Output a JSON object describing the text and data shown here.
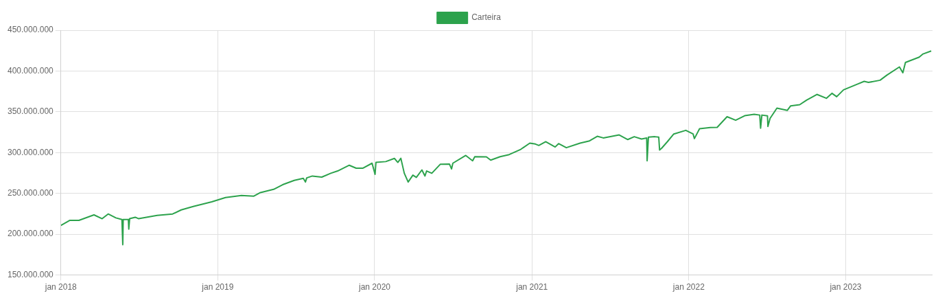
{
  "chart_data": {
    "type": "line",
    "legend": "top",
    "grid": true,
    "xlim": [
      "2018-01-01",
      "2023-07-22"
    ],
    "xticks": [
      {
        "value": "2018-01-01",
        "label": "jan 2018"
      },
      {
        "value": "2019-01-01",
        "label": "jan 2019"
      },
      {
        "value": "2020-01-01",
        "label": "jan 2020"
      },
      {
        "value": "2021-01-01",
        "label": "jan 2021"
      },
      {
        "value": "2022-01-01",
        "label": "jan 2022"
      },
      {
        "value": "2023-01-01",
        "label": "jan 2023"
      }
    ],
    "ylim": [
      150000000,
      450000000
    ],
    "yticks": [
      {
        "value": 150000000,
        "label": "150.000.000"
      },
      {
        "value": 200000000,
        "label": "200.000.000"
      },
      {
        "value": 250000000,
        "label": "250.000.000"
      },
      {
        "value": 300000000,
        "label": "300.000.000"
      },
      {
        "value": 350000000,
        "label": "350.000.000"
      },
      {
        "value": 400000000,
        "label": "400.000.000"
      },
      {
        "value": 450000000,
        "label": "450.000.000"
      }
    ],
    "series": [
      {
        "name": "Carteira",
        "color": "#2ca24c",
        "x": [
          "2018-01-01",
          "2018-01-22",
          "2018-02-12",
          "2018-03-19",
          "2018-04-07",
          "2018-04-21",
          "2018-05-09",
          "2018-05-23",
          "2018-05-25",
          "2018-05-26",
          "2018-06-07",
          "2018-06-08",
          "2018-06-10",
          "2018-06-23",
          "2018-07-01",
          "2018-08-13",
          "2018-09-18",
          "2018-10-08",
          "2018-11-05",
          "2018-12-18",
          "2019-01-19",
          "2019-02-25",
          "2019-03-26",
          "2019-04-09",
          "2019-05-11",
          "2019-06-01",
          "2019-06-28",
          "2019-07-19",
          "2019-07-24",
          "2019-07-27",
          "2019-08-09",
          "2019-08-31",
          "2019-09-21",
          "2019-10-07",
          "2019-11-03",
          "2019-11-19",
          "2019-12-05",
          "2019-12-26",
          "2020-01-02",
          "2020-01-04",
          "2020-01-27",
          "2020-02-16",
          "2020-02-24",
          "2020-03-02",
          "2020-03-10",
          "2020-03-19",
          "2020-03-30",
          "2020-04-07",
          "2020-04-20",
          "2020-04-27",
          "2020-05-01",
          "2020-05-13",
          "2020-06-02",
          "2020-06-23",
          "2020-06-28",
          "2020-07-01",
          "2020-07-31",
          "2020-08-16",
          "2020-08-21",
          "2020-09-17",
          "2020-09-27",
          "2020-10-19",
          "2020-11-09",
          "2020-12-06",
          "2020-12-27",
          "2021-01-09",
          "2021-01-17",
          "2021-02-02",
          "2021-02-24",
          "2021-03-04",
          "2021-03-22",
          "2021-04-23",
          "2021-05-15",
          "2021-06-02",
          "2021-06-16",
          "2021-07-23",
          "2021-08-12",
          "2021-08-27",
          "2021-09-13",
          "2021-09-25",
          "2021-09-26",
          "2021-09-29",
          "2021-10-14",
          "2021-10-23",
          "2021-10-25",
          "2021-10-30",
          "2021-11-12",
          "2021-11-27",
          "2021-12-25",
          "2022-01-11",
          "2022-01-14",
          "2022-01-26",
          "2022-02-20",
          "2022-03-08",
          "2022-03-31",
          "2022-04-20",
          "2022-05-11",
          "2022-06-02",
          "2022-06-15",
          "2022-06-17",
          "2022-06-20",
          "2022-07-03",
          "2022-07-04",
          "2022-07-09",
          "2022-07-25",
          "2022-08-18",
          "2022-08-26",
          "2022-09-16",
          "2022-10-02",
          "2022-10-26",
          "2022-11-17",
          "2022-11-30",
          "2022-12-11",
          "2022-12-27",
          "2023-01-28",
          "2023-02-13",
          "2023-02-23",
          "2023-03-22",
          "2023-04-07",
          "2023-05-06",
          "2023-05-14",
          "2023-05-20",
          "2023-06-21",
          "2023-06-30",
          "2023-07-19"
        ],
        "values": [
          210700000,
          217000000,
          217000000,
          223700000,
          219000000,
          224800000,
          220000000,
          218000000,
          187200000,
          218000000,
          218000000,
          206300000,
          219000000,
          220800000,
          219000000,
          223000000,
          224800000,
          229800000,
          234000000,
          239700000,
          245000000,
          247500000,
          246700000,
          250800000,
          255000000,
          260700000,
          266000000,
          268500000,
          264000000,
          269000000,
          271300000,
          270000000,
          274700000,
          277500000,
          284500000,
          280900000,
          281000000,
          287000000,
          273300000,
          288000000,
          289000000,
          292900000,
          288000000,
          293000000,
          274700000,
          264000000,
          272400000,
          269600000,
          278800000,
          271300000,
          277500000,
          274700000,
          285800000,
          286000000,
          280000000,
          287000000,
          296500000,
          290000000,
          295000000,
          294800000,
          290800000,
          295000000,
          297600000,
          304000000,
          311600000,
          310500000,
          308800000,
          313300000,
          306900000,
          311000000,
          306000000,
          311600000,
          314400000,
          320000000,
          318000000,
          321700000,
          316000000,
          319500000,
          316700000,
          318000000,
          290000000,
          319000000,
          319500000,
          319000000,
          303200000,
          305500000,
          313300000,
          322800000,
          327300000,
          322800000,
          317200000,
          329300000,
          330700000,
          331000000,
          344000000,
          339700000,
          345200000,
          346900000,
          346000000,
          330000000,
          346000000,
          345000000,
          332000000,
          341900000,
          354500000,
          351700000,
          357300000,
          358700000,
          364300000,
          371300000,
          366600000,
          372700000,
          368500000,
          376900000,
          383900000,
          387300000,
          386000000,
          388700000,
          395000000,
          405000000,
          397900000,
          410500000,
          417000000,
          420900000,
          424500000
        ]
      }
    ]
  }
}
